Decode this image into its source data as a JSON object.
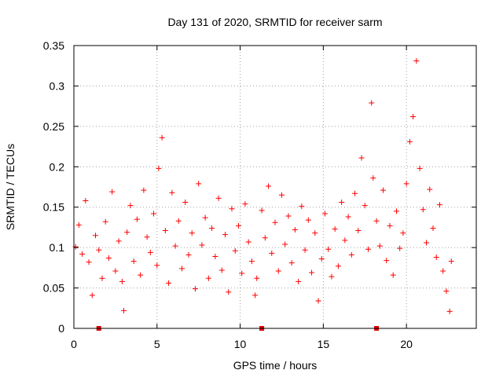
{
  "chart_data": {
    "type": "scatter",
    "title": "Day 131 of 2020, SRMTID for receiver sarm",
    "xlabel": "GPS time / hours",
    "ylabel": "SRMTID / TECUs",
    "xlim": [
      0,
      24.2
    ],
    "ylim": [
      0,
      0.35
    ],
    "xticks": [
      0,
      5,
      10,
      15,
      20
    ],
    "xtick_labels": [
      "0",
      "5",
      "10",
      "15",
      "20"
    ],
    "yticks": [
      0,
      0.05,
      0.1,
      0.15,
      0.2,
      0.25,
      0.3,
      0.35
    ],
    "ytick_labels": [
      "0",
      "0.05",
      "0.1",
      "0.15",
      "0.2",
      "0.25",
      "0.3",
      "0.35"
    ],
    "grid": true,
    "marker": "+",
    "color": "#ff0000",
    "gap_marker_color": "#dd0000",
    "gap_markers_x": [
      1.5,
      11.3,
      18.2
    ],
    "points": [
      [
        0.1,
        0.101
      ],
      [
        0.3,
        0.128
      ],
      [
        0.5,
        0.092
      ],
      [
        0.7,
        0.158
      ],
      [
        0.9,
        0.082
      ],
      [
        1.1,
        0.041
      ],
      [
        1.3,
        0.115
      ],
      [
        1.5,
        0.097
      ],
      [
        1.7,
        0.062
      ],
      [
        1.9,
        0.132
      ],
      [
        2.1,
        0.087
      ],
      [
        2.3,
        0.169
      ],
      [
        2.5,
        0.071
      ],
      [
        2.7,
        0.108
      ],
      [
        2.9,
        0.058
      ],
      [
        3.0,
        0.022
      ],
      [
        3.2,
        0.119
      ],
      [
        3.4,
        0.152
      ],
      [
        3.6,
        0.083
      ],
      [
        3.8,
        0.135
      ],
      [
        4.0,
        0.066
      ],
      [
        4.2,
        0.171
      ],
      [
        4.4,
        0.113
      ],
      [
        4.6,
        0.094
      ],
      [
        4.8,
        0.142
      ],
      [
        5.0,
        0.078
      ],
      [
        5.1,
        0.198
      ],
      [
        5.3,
        0.236
      ],
      [
        5.5,
        0.121
      ],
      [
        5.7,
        0.056
      ],
      [
        5.9,
        0.168
      ],
      [
        6.1,
        0.102
      ],
      [
        6.3,
        0.133
      ],
      [
        6.5,
        0.074
      ],
      [
        6.7,
        0.156
      ],
      [
        6.9,
        0.091
      ],
      [
        7.1,
        0.118
      ],
      [
        7.3,
        0.049
      ],
      [
        7.5,
        0.179
      ],
      [
        7.7,
        0.103
      ],
      [
        7.9,
        0.137
      ],
      [
        8.1,
        0.062
      ],
      [
        8.3,
        0.124
      ],
      [
        8.5,
        0.089
      ],
      [
        8.7,
        0.161
      ],
      [
        8.9,
        0.072
      ],
      [
        9.1,
        0.116
      ],
      [
        9.3,
        0.045
      ],
      [
        9.5,
        0.148
      ],
      [
        9.7,
        0.096
      ],
      [
        9.9,
        0.127
      ],
      [
        10.1,
        0.068
      ],
      [
        10.3,
        0.154
      ],
      [
        10.5,
        0.107
      ],
      [
        10.7,
        0.083
      ],
      [
        10.9,
        0.041
      ],
      [
        11.0,
        0.062
      ],
      [
        11.3,
        0.146
      ],
      [
        11.5,
        0.112
      ],
      [
        11.7,
        0.176
      ],
      [
        11.9,
        0.093
      ],
      [
        12.1,
        0.131
      ],
      [
        12.3,
        0.071
      ],
      [
        12.5,
        0.165
      ],
      [
        12.7,
        0.104
      ],
      [
        12.9,
        0.139
      ],
      [
        13.1,
        0.081
      ],
      [
        13.3,
        0.122
      ],
      [
        13.5,
        0.058
      ],
      [
        13.7,
        0.151
      ],
      [
        13.9,
        0.097
      ],
      [
        14.1,
        0.134
      ],
      [
        14.3,
        0.069
      ],
      [
        14.5,
        0.118
      ],
      [
        14.7,
        0.034
      ],
      [
        14.9,
        0.086
      ],
      [
        15.1,
        0.142
      ],
      [
        15.3,
        0.098
      ],
      [
        15.5,
        0.064
      ],
      [
        15.7,
        0.123
      ],
      [
        15.9,
        0.077
      ],
      [
        16.1,
        0.156
      ],
      [
        16.3,
        0.109
      ],
      [
        16.5,
        0.138
      ],
      [
        16.7,
        0.091
      ],
      [
        16.9,
        0.167
      ],
      [
        17.1,
        0.121
      ],
      [
        17.3,
        0.211
      ],
      [
        17.5,
        0.152
      ],
      [
        17.7,
        0.098
      ],
      [
        17.9,
        0.279
      ],
      [
        18.0,
        0.186
      ],
      [
        18.2,
        0.133
      ],
      [
        18.4,
        0.102
      ],
      [
        18.6,
        0.171
      ],
      [
        18.8,
        0.084
      ],
      [
        19.0,
        0.127
      ],
      [
        19.2,
        0.066
      ],
      [
        19.4,
        0.145
      ],
      [
        19.6,
        0.099
      ],
      [
        19.8,
        0.118
      ],
      [
        20.0,
        0.179
      ],
      [
        20.2,
        0.231
      ],
      [
        20.4,
        0.262
      ],
      [
        20.6,
        0.331
      ],
      [
        20.8,
        0.198
      ],
      [
        21.0,
        0.147
      ],
      [
        21.2,
        0.106
      ],
      [
        21.4,
        0.172
      ],
      [
        21.6,
        0.124
      ],
      [
        21.8,
        0.088
      ],
      [
        22.0,
        0.153
      ],
      [
        22.2,
        0.071
      ],
      [
        22.4,
        0.046
      ],
      [
        22.6,
        0.021
      ],
      [
        22.7,
        0.083
      ]
    ]
  }
}
